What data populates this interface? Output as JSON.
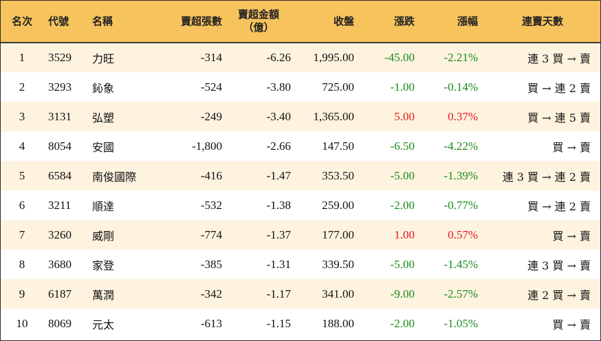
{
  "colors": {
    "header_bg": "#f6c35d",
    "stripe_bg": "#fdf3df",
    "up": "#e8141b",
    "down": "#1a8a1a"
  },
  "headers": {
    "rank": "名次",
    "code": "代號",
    "name": "名稱",
    "sell_lots": "賣超張數",
    "sell_amount_line1": "賣超金額",
    "sell_amount_line2": "（億）",
    "close": "收盤",
    "change": "漲跌",
    "pct": "漲幅",
    "days": "連賣天數"
  },
  "rows": [
    {
      "rank": "1",
      "code": "3529",
      "name": "力旺",
      "sell_lots": "-314",
      "sell_amount": "-6.26",
      "close": "1,995.00",
      "change": "-45.00",
      "pct": "-2.21%",
      "days": "連 3 買 → 賣",
      "dir": "down"
    },
    {
      "rank": "2",
      "code": "3293",
      "name": "鈊象",
      "sell_lots": "-524",
      "sell_amount": "-3.80",
      "close": "725.00",
      "change": "-1.00",
      "pct": "-0.14%",
      "days": "買 → 連 2 賣",
      "dir": "down"
    },
    {
      "rank": "3",
      "code": "3131",
      "name": "弘塑",
      "sell_lots": "-249",
      "sell_amount": "-3.40",
      "close": "1,365.00",
      "change": "5.00",
      "pct": "0.37%",
      "days": "買 → 連 5 賣",
      "dir": "up"
    },
    {
      "rank": "4",
      "code": "8054",
      "name": "安國",
      "sell_lots": "-1,800",
      "sell_amount": "-2.66",
      "close": "147.50",
      "change": "-6.50",
      "pct": "-4.22%",
      "days": "買 → 賣",
      "dir": "down"
    },
    {
      "rank": "5",
      "code": "6584",
      "name": "南俊國際",
      "sell_lots": "-416",
      "sell_amount": "-1.47",
      "close": "353.50",
      "change": "-5.00",
      "pct": "-1.39%",
      "days": "連 3 買 → 連 2 賣",
      "dir": "down"
    },
    {
      "rank": "6",
      "code": "3211",
      "name": "順達",
      "sell_lots": "-532",
      "sell_amount": "-1.38",
      "close": "259.00",
      "change": "-2.00",
      "pct": "-0.77%",
      "days": "買 → 連 2 賣",
      "dir": "down"
    },
    {
      "rank": "7",
      "code": "3260",
      "name": "威剛",
      "sell_lots": "-774",
      "sell_amount": "-1.37",
      "close": "177.00",
      "change": "1.00",
      "pct": "0.57%",
      "days": "買 → 賣",
      "dir": "up"
    },
    {
      "rank": "8",
      "code": "3680",
      "name": "家登",
      "sell_lots": "-385",
      "sell_amount": "-1.31",
      "close": "339.50",
      "change": "-5.00",
      "pct": "-1.45%",
      "days": "連 3 買 → 賣",
      "dir": "down"
    },
    {
      "rank": "9",
      "code": "6187",
      "name": "萬潤",
      "sell_lots": "-342",
      "sell_amount": "-1.17",
      "close": "341.00",
      "change": "-9.00",
      "pct": "-2.57%",
      "days": "連 2 買 → 賣",
      "dir": "down"
    },
    {
      "rank": "10",
      "code": "8069",
      "name": "元太",
      "sell_lots": "-613",
      "sell_amount": "-1.15",
      "close": "188.00",
      "change": "-2.00",
      "pct": "-1.05%",
      "days": "買 → 賣",
      "dir": "down"
    }
  ]
}
